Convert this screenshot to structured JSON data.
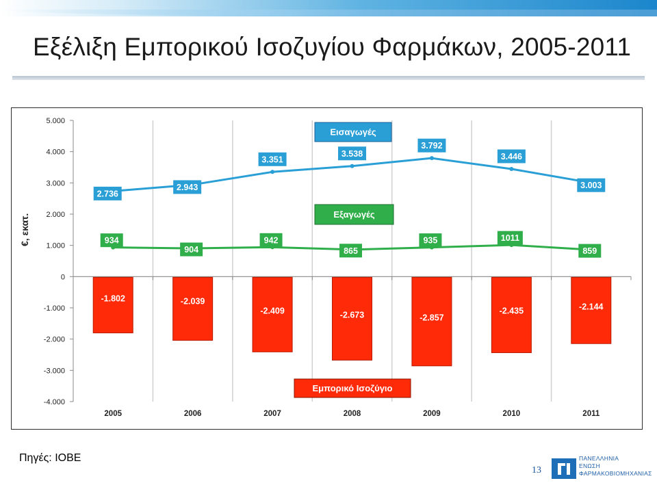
{
  "title": "Εξέλιξη Εμπορικού Ισοζυγίου Φαρμάκων, 2005-2011",
  "source": "Πηγές: ΙΟΒΕ",
  "page_number": "13",
  "logo": {
    "lines": [
      "ΠΑΝΕΛΛΗΝΙΑ",
      "ΕΝΩΣΗ",
      "ΦΑΡΜΑΚΟΒΙΟΜΗΧΑΝΙΑΣ"
    ]
  },
  "colors": {
    "imports": "#2a9fd6",
    "exports": "#2fae4a",
    "balance": "#ff2a08",
    "balance_edge": "#b81a00"
  },
  "chart_data": {
    "type": "bar",
    "ylabel": "€, εκατ.",
    "ylim": [
      -4000,
      5000
    ],
    "yticks": [
      5000,
      4000,
      3000,
      2000,
      1000,
      0,
      -1000,
      -2000,
      -3000,
      -4000
    ],
    "ytick_labels": [
      "5.000",
      "4.000",
      "3.000",
      "2.000",
      "1.000",
      "0",
      "-1.000",
      "-2.000",
      "-3.000",
      "-4.000"
    ],
    "grid": "vertical",
    "categories": [
      "2005",
      "2006",
      "2007",
      "2008",
      "2009",
      "2010",
      "2011"
    ],
    "series": [
      {
        "name": "Εισαγωγές",
        "kind": "line",
        "values": [
          2736,
          2943,
          3351,
          3538,
          3792,
          3446,
          3003
        ],
        "labels": [
          "2.736",
          "2.943",
          "3.351",
          "3.538",
          "3.792",
          "3.446",
          "3.003"
        ]
      },
      {
        "name": "Εξαγωγές",
        "kind": "line",
        "values": [
          934,
          904,
          942,
          865,
          935,
          1011,
          859
        ],
        "labels": [
          "934",
          "904",
          "942",
          "865",
          "935",
          "1011",
          "859"
        ]
      },
      {
        "name": "Εμπορικό Ισοζύγιο",
        "kind": "bar",
        "values": [
          -1802,
          -2039,
          -2409,
          -2673,
          -2857,
          -2435,
          -2144
        ],
        "labels": [
          "-1.802",
          "-2.039",
          "-2.409",
          "-2.673",
          "-2.857",
          "-2.435",
          "-2.144"
        ]
      }
    ]
  }
}
